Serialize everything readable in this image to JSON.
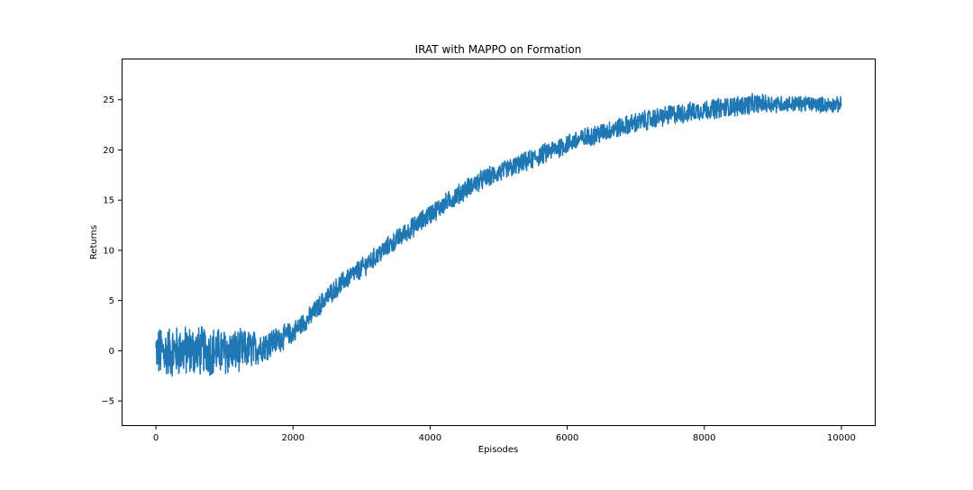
{
  "chart_data": {
    "type": "line",
    "title": "IRAT with MAPPO on Formation",
    "xlabel": "Episodes",
    "ylabel": "Returns",
    "xlim": [
      -500,
      10500
    ],
    "ylim": [
      -7.5,
      29.1
    ],
    "xticks": [
      0,
      2000,
      4000,
      6000,
      8000,
      10000
    ],
    "yticks": [
      -5,
      0,
      5,
      10,
      15,
      20,
      25
    ],
    "grid": false,
    "legend": "none",
    "line_color": "#1f77b4",
    "series": [
      {
        "x": [
          0,
          250,
          500,
          750,
          1000,
          1250,
          1500,
          1750,
          2000,
          2250,
          2500,
          2750,
          3000,
          3250,
          3500,
          3750,
          4000,
          4250,
          4500,
          4750,
          5000,
          5250,
          5500,
          5750,
          6000,
          6250,
          6500,
          6750,
          7000,
          7250,
          7500,
          7750,
          8000,
          8250,
          8500,
          8750,
          9000,
          9250,
          9500,
          9750,
          10000
        ],
        "y": [
          -0.2,
          -0.1,
          0.0,
          0.0,
          -0.1,
          0.0,
          0.3,
          1.0,
          1.8,
          3.4,
          5.4,
          7.0,
          8.2,
          9.6,
          11.0,
          12.3,
          13.6,
          14.8,
          16.0,
          17.0,
          17.7,
          18.4,
          19.1,
          19.9,
          20.6,
          21.2,
          21.7,
          22.2,
          22.7,
          23.1,
          23.5,
          23.7,
          24.0,
          24.2,
          24.4,
          24.6,
          24.6,
          24.6,
          24.6,
          24.5,
          24.5
        ],
        "noise": [
          2.3,
          2.3,
          2.3,
          2.2,
          2.1,
          1.9,
          1.5,
          1.2,
          1.0,
          0.9,
          0.9,
          0.9,
          0.9,
          0.9,
          0.9,
          0.9,
          0.9,
          0.9,
          0.9,
          0.9,
          0.9,
          0.9,
          0.9,
          0.9,
          0.9,
          0.9,
          0.9,
          0.9,
          0.9,
          0.9,
          0.9,
          0.9,
          0.9,
          0.9,
          0.9,
          0.9,
          0.8,
          0.7,
          0.7,
          0.7,
          0.7
        ]
      }
    ]
  }
}
